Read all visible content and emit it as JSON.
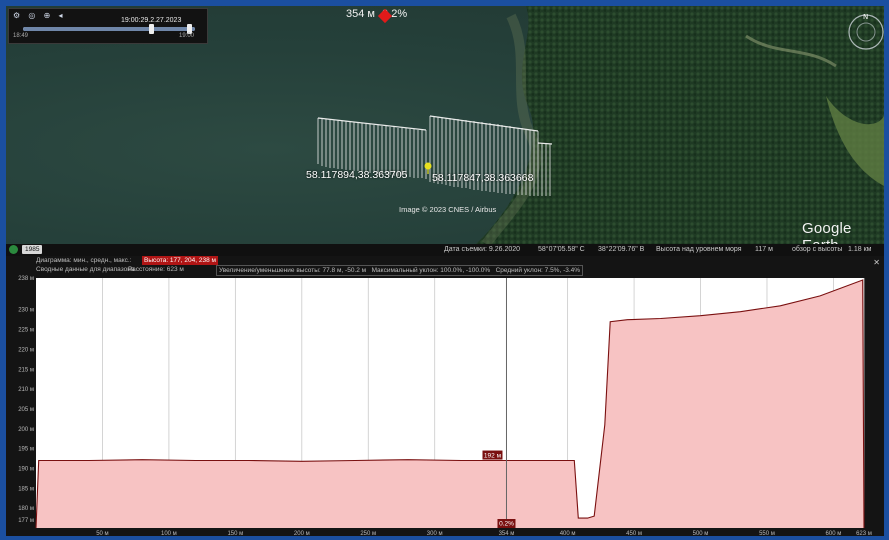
{
  "timeslider": {
    "date": "19:00:29.2.27.2023",
    "left_time": "18:49",
    "right_time": "19:00"
  },
  "map": {
    "marker_distance": "354 м",
    "marker_percent": "0.2%",
    "label_left": "58.117894,38.363705",
    "label_right": "58.117847,38.363668",
    "copyright": "Image © 2023 CNES / Airbus",
    "logo": "Google Earth"
  },
  "status": {
    "year": "1985",
    "date_label": "Дата съемки: 9.26.2020",
    "lat": "58°07'05.58\" С",
    "lon": "38°22'09.76\" В",
    "elev_label": "Высота над уровнем моря",
    "elev_value": "117 м",
    "eye_label": "обзор с высоты",
    "eye_value": "1.18 км"
  },
  "profile_header": {
    "line1_prefix": "Диаграмма: мин., средн., макс.:",
    "line1_selected": "Высота: 177, 204, 238 м",
    "line2_title": "Сводные данные для диапазона",
    "distance": "Расстояние: 623 м",
    "gain_loss": "Увеличение/уменьшение высоты: 77.8 м, -50.2 м",
    "max_slope": "Максимальный уклон: 100.0%, -100.0%",
    "avg_slope": "Средний уклон: 7.5%, -3.4%"
  },
  "chart_data": {
    "type": "area",
    "xlabel": "",
    "ylabel": "",
    "xlim": [
      0,
      623
    ],
    "ylim": [
      175,
      238
    ],
    "y_ticks": [
      {
        "v": 177,
        "label": "177 м"
      },
      {
        "v": 180,
        "label": "180 м"
      },
      {
        "v": 185,
        "label": "185 м"
      },
      {
        "v": 190,
        "label": "190 м"
      },
      {
        "v": 195,
        "label": "195 м"
      },
      {
        "v": 200,
        "label": "200 м"
      },
      {
        "v": 205,
        "label": "205 м"
      },
      {
        "v": 210,
        "label": "210 м"
      },
      {
        "v": 215,
        "label": "215 м"
      },
      {
        "v": 220,
        "label": "220 м"
      },
      {
        "v": 225,
        "label": "225 м"
      },
      {
        "v": 230,
        "label": "230 м"
      },
      {
        "v": 238,
        "label": "238 м"
      }
    ],
    "x_ticks": [
      {
        "v": 50,
        "label": "50 м"
      },
      {
        "v": 100,
        "label": "100 м"
      },
      {
        "v": 150,
        "label": "150 м"
      },
      {
        "v": 200,
        "label": "200 м"
      },
      {
        "v": 250,
        "label": "250 м"
      },
      {
        "v": 300,
        "label": "300 м"
      },
      {
        "v": 354,
        "label": "354 м"
      },
      {
        "v": 400,
        "label": "400 м"
      },
      {
        "v": 450,
        "label": "450 м"
      },
      {
        "v": 500,
        "label": "500 м"
      },
      {
        "v": 550,
        "label": "550 м"
      },
      {
        "v": 600,
        "label": "600 м"
      },
      {
        "v": 623,
        "label": "623 м"
      }
    ],
    "x": [
      0,
      2,
      40,
      80,
      120,
      160,
      200,
      240,
      280,
      320,
      354,
      380,
      405,
      408,
      415,
      420,
      428,
      432,
      445,
      470,
      500,
      530,
      560,
      590,
      622,
      623
    ],
    "y": [
      175,
      192,
      192,
      192.2,
      192,
      192,
      191.8,
      192,
      192.2,
      192,
      192,
      192,
      192,
      177.5,
      177.5,
      178,
      201,
      227,
      227.5,
      227.8,
      228.5,
      229.5,
      231,
      233.5,
      237.5,
      175
    ],
    "cursor": {
      "x": 354,
      "value_label": "192 м",
      "slope_label": "0.2%"
    },
    "area_color": "#f7c3c3",
    "line_color": "#7a1010",
    "grid": true
  }
}
